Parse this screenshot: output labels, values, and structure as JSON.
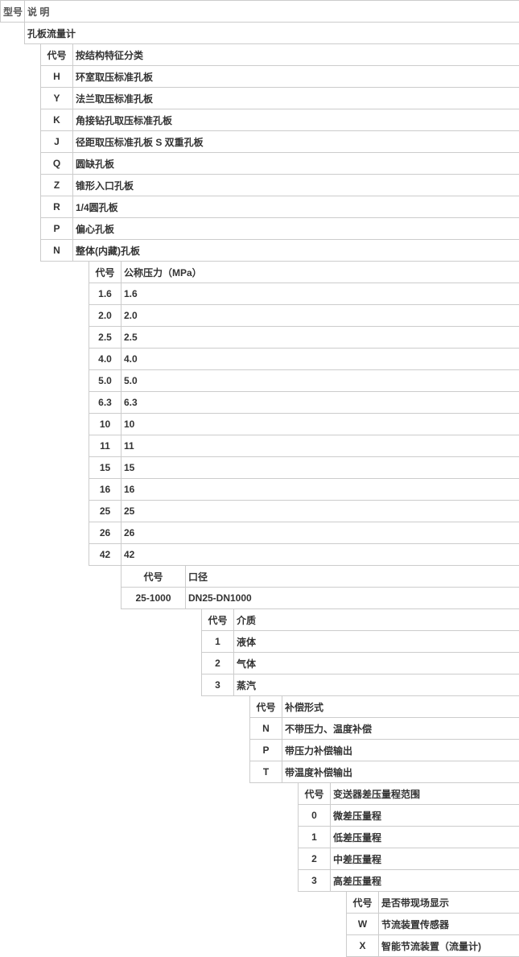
{
  "header": {
    "col1": "型号",
    "col2": "说 明"
  },
  "title": "孔板流量计",
  "sec1": {
    "codeLabel": "代号",
    "descLabel": "按结构特征分类",
    "rows": [
      {
        "c": "H",
        "d": "环室取压标准孔板"
      },
      {
        "c": "Y",
        "d": "法兰取压标准孔板"
      },
      {
        "c": "K",
        "d": "角接钻孔取压标准孔板"
      },
      {
        "c": "J",
        "d": "径距取压标准孔板 S 双重孔板"
      },
      {
        "c": "Q",
        "d": "圆缺孔板"
      },
      {
        "c": "Z",
        "d": "锥形入口孔板"
      },
      {
        "c": "R",
        "d": "1/4圆孔板"
      },
      {
        "c": "P",
        "d": "偏心孔板"
      },
      {
        "c": "N",
        "d": "整体(内藏)孔板"
      }
    ]
  },
  "sec2": {
    "codeLabel": "代号",
    "descLabel": "公称压力（MPa）",
    "rows": [
      {
        "c": "1.6",
        "d": "1.6"
      },
      {
        "c": "2.0",
        "d": "2.0"
      },
      {
        "c": "2.5",
        "d": "2.5"
      },
      {
        "c": "4.0",
        "d": "4.0"
      },
      {
        "c": "5.0",
        "d": "5.0"
      },
      {
        "c": "6.3",
        "d": "6.3"
      },
      {
        "c": "10",
        "d": "10"
      },
      {
        "c": "11",
        "d": "11"
      },
      {
        "c": "15",
        "d": "15"
      },
      {
        "c": "16",
        "d": "16"
      },
      {
        "c": "25",
        "d": "25"
      },
      {
        "c": "26",
        "d": "26"
      },
      {
        "c": "42",
        "d": "42"
      }
    ]
  },
  "sec3": {
    "codeLabel": "代号",
    "descLabel": "口径",
    "rows": [
      {
        "c": "25-1000",
        "d": "DN25-DN1000"
      }
    ]
  },
  "sec4": {
    "codeLabel": "代号",
    "descLabel": "介质",
    "rows": [
      {
        "c": "1",
        "d": "液体"
      },
      {
        "c": "2",
        "d": "气体"
      },
      {
        "c": "3",
        "d": "蒸汽"
      }
    ]
  },
  "sec5": {
    "codeLabel": "代号",
    "descLabel": "补偿形式",
    "rows": [
      {
        "c": "N",
        "d": "不带压力、温度补偿"
      },
      {
        "c": "P",
        "d": "带压力补偿输出"
      },
      {
        "c": "T",
        "d": "带温度补偿输出"
      }
    ]
  },
  "sec6": {
    "codeLabel": "代号",
    "descLabel": "变送器差压量程范围",
    "rows": [
      {
        "c": "0",
        "d": "微差压量程"
      },
      {
        "c": "1",
        "d": "低差压量程"
      },
      {
        "c": "2",
        "d": "中差压量程"
      },
      {
        "c": "3",
        "d": "高差压量程"
      }
    ]
  },
  "sec7": {
    "codeLabel": "代号",
    "descLabel": "是否带现场显示",
    "rows": [
      {
        "c": "W",
        "d": "节流装置传感器"
      },
      {
        "c": "X",
        "d": "智能节流装置（流量计)"
      }
    ]
  }
}
